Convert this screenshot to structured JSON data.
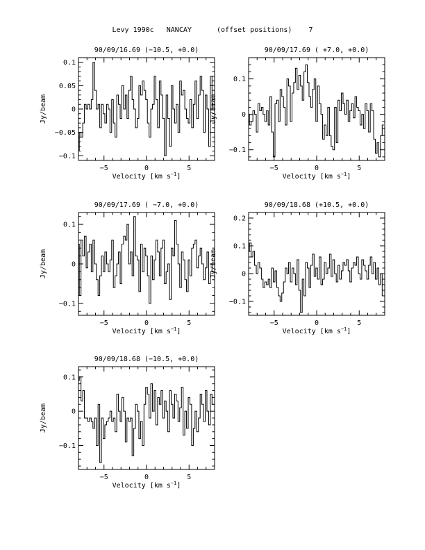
{
  "page": {
    "title": "Levy 1990c   NANCAY      (offset positions)    7"
  },
  "common": {
    "xlabel": "Velocity [km s",
    "xlabel_sup": "−1",
    "xlabel_end": "]",
    "ylabel": "Jy/beam"
  },
  "chart_data": [
    {
      "type": "line",
      "title": "90/09/16.69  (−10.5, +0.0)",
      "xlim": [
        -8.0,
        8.0
      ],
      "ylim": [
        -0.11,
        0.11
      ],
      "xticks": [
        -5,
        0,
        5
      ],
      "yticks": [
        -0.1,
        -0.05,
        0,
        0.05,
        0.1
      ],
      "ytick_labels": [
        "−0.1",
        "−0.05",
        "0",
        "0.05",
        "0.1"
      ],
      "x": [
        -8.0,
        -7.8,
        -7.6,
        -7.4,
        -7.2,
        -7.0,
        -6.8,
        -6.6,
        -6.4,
        -6.2,
        -6.0,
        -5.8,
        -5.6,
        -5.4,
        -5.2,
        -5.0,
        -4.8,
        -4.6,
        -4.4,
        -4.2,
        -4.0,
        -3.8,
        -3.6,
        -3.4,
        -3.2,
        -3.0,
        -2.8,
        -2.6,
        -2.4,
        -2.2,
        -2.0,
        -1.8,
        -1.6,
        -1.4,
        -1.2,
        -1.0,
        -0.8,
        -0.6,
        -0.4,
        -0.2,
        0.0,
        0.2,
        0.4,
        0.6,
        0.8,
        1.0,
        1.2,
        1.4,
        1.6,
        1.8,
        2.0,
        2.2,
        2.4,
        2.6,
        2.8,
        3.0,
        3.2,
        3.4,
        3.6,
        3.8,
        4.0,
        4.2,
        4.4,
        4.6,
        4.8,
        5.0,
        5.2,
        5.4,
        5.6,
        5.8,
        6.0,
        6.2,
        6.4,
        6.6,
        6.8,
        7.0,
        7.2,
        7.4,
        7.6,
        7.8
      ],
      "y": [
        -0.09,
        -0.05,
        -0.06,
        -0.03,
        0.01,
        0.0,
        0.01,
        0.0,
        0.02,
        0.1,
        0.04,
        0.0,
        0.01,
        -0.04,
        0.01,
        -0.01,
        -0.03,
        0.01,
        0.0,
        -0.05,
        0.02,
        -0.03,
        -0.06,
        0.03,
        0.01,
        -0.02,
        0.05,
        0.0,
        0.03,
        -0.02,
        0.04,
        0.07,
        0.02,
        0.0,
        -0.04,
        -0.02,
        0.05,
        0.03,
        0.06,
        0.04,
        0.02,
        -0.03,
        -0.06,
        0.0,
        0.01,
        0.07,
        0.02,
        -0.04,
        0.06,
        0.03,
        -0.02,
        -0.1,
        0.03,
        -0.02,
        -0.08,
        0.05,
        0.0,
        -0.03,
        0.01,
        -0.05,
        0.06,
        0.03,
        0.04,
        0.0,
        -0.02,
        -0.03,
        0.02,
        -0.04,
        0.01,
        0.06,
        -0.02,
        0.03,
        0.07,
        0.04,
        -0.05,
        0.03,
        0.0,
        -0.08,
        0.07,
        0.0
      ]
    },
    {
      "type": "line",
      "title": "90/09/17.69  ( +7.0, +0.0)",
      "xlim": [
        -8.0,
        8.0
      ],
      "ylim": [
        -0.13,
        0.16
      ],
      "xticks": [
        -5,
        0,
        5
      ],
      "yticks": [
        -0.1,
        0,
        0.1
      ],
      "ytick_labels": [
        "−0.1",
        "0",
        "0.1"
      ],
      "x": [
        -8.0,
        -7.8,
        -7.6,
        -7.4,
        -7.2,
        -7.0,
        -6.8,
        -6.6,
        -6.4,
        -6.2,
        -6.0,
        -5.8,
        -5.6,
        -5.4,
        -5.2,
        -5.0,
        -4.8,
        -4.6,
        -4.4,
        -4.2,
        -4.0,
        -3.8,
        -3.6,
        -3.4,
        -3.2,
        -3.0,
        -2.8,
        -2.6,
        -2.4,
        -2.2,
        -2.0,
        -1.8,
        -1.6,
        -1.4,
        -1.2,
        -1.0,
        -0.8,
        -0.6,
        -0.4,
        -0.2,
        0.0,
        0.2,
        0.4,
        0.6,
        0.8,
        1.0,
        1.2,
        1.4,
        1.6,
        1.8,
        2.0,
        2.2,
        2.4,
        2.6,
        2.8,
        3.0,
        3.2,
        3.4,
        3.6,
        3.8,
        4.0,
        4.2,
        4.4,
        4.6,
        4.8,
        5.0,
        5.2,
        5.4,
        5.6,
        5.8,
        6.0,
        6.2,
        6.4,
        6.6,
        6.8,
        7.0,
        7.2,
        7.4,
        7.6,
        7.8
      ],
      "y": [
        0.0,
        -0.03,
        -0.02,
        0.01,
        0.0,
        -0.05,
        0.03,
        0.01,
        0.02,
        0.0,
        -0.02,
        0.01,
        -0.03,
        0.05,
        -0.05,
        -0.12,
        0.03,
        0.04,
        -0.02,
        0.07,
        0.05,
        0.02,
        -0.03,
        0.1,
        0.08,
        -0.02,
        0.06,
        0.09,
        0.13,
        0.07,
        0.11,
        0.08,
        0.04,
        0.12,
        0.14,
        0.09,
        0.05,
        0.02,
        0.07,
        0.1,
        -0.02,
        0.08,
        0.03,
        0.0,
        -0.07,
        -0.03,
        -0.06,
        0.02,
        -0.06,
        -0.09,
        -0.1,
        0.02,
        -0.08,
        0.04,
        0.01,
        0.06,
        0.03,
        0.0,
        0.04,
        -0.02,
        0.01,
        0.03,
        -0.01,
        0.05,
        0.02,
        0.01,
        -0.03,
        0.0,
        -0.04,
        0.03,
        0.01,
        -0.05,
        0.03,
        0.01,
        -0.07,
        -0.11,
        -0.08,
        -0.12,
        -0.06,
        -0.03
      ]
    },
    {
      "type": "line",
      "title": "90/09/17.69  ( −7.0, +0.0)",
      "xlim": [
        -8.0,
        8.0
      ],
      "ylim": [
        -0.13,
        0.13
      ],
      "xticks": [
        -5,
        0,
        5
      ],
      "yticks": [
        -0.1,
        0,
        0.1
      ],
      "ytick_labels": [
        "−0.1",
        "0",
        "0.1"
      ],
      "x": [
        -8.0,
        -7.8,
        -7.6,
        -7.4,
        -7.2,
        -7.0,
        -6.8,
        -6.6,
        -6.4,
        -6.2,
        -6.0,
        -5.8,
        -5.6,
        -5.4,
        -5.2,
        -5.0,
        -4.8,
        -4.6,
        -4.4,
        -4.2,
        -4.0,
        -3.8,
        -3.6,
        -3.4,
        -3.2,
        -3.0,
        -2.8,
        -2.6,
        -2.4,
        -2.2,
        -2.0,
        -1.8,
        -1.6,
        -1.4,
        -1.2,
        -1.0,
        -0.8,
        -0.6,
        -0.4,
        -0.2,
        0.0,
        0.2,
        0.4,
        0.6,
        0.8,
        1.0,
        1.2,
        1.4,
        1.6,
        1.8,
        2.0,
        2.2,
        2.4,
        2.6,
        2.8,
        3.0,
        3.2,
        3.4,
        3.6,
        3.8,
        4.0,
        4.2,
        4.4,
        4.6,
        4.8,
        5.0,
        5.2,
        5.4,
        5.6,
        5.8,
        6.0,
        6.2,
        6.4,
        6.6,
        6.8,
        7.0,
        7.2,
        7.4,
        7.6,
        7.8
      ],
      "y": [
        0.05,
        -0.08,
        0.06,
        0.02,
        0.07,
        -0.01,
        0.03,
        0.05,
        -0.02,
        0.06,
        0.0,
        -0.04,
        -0.08,
        -0.03,
        0.02,
        -0.02,
        0.03,
        0.0,
        -0.02,
        0.01,
        0.06,
        -0.06,
        -0.03,
        0.0,
        0.03,
        -0.05,
        0.05,
        0.07,
        0.06,
        0.1,
        0.0,
        0.03,
        -0.03,
        0.12,
        0.02,
        0.01,
        -0.07,
        0.05,
        -0.02,
        0.04,
        0.02,
        -0.03,
        -0.1,
        0.02,
        -0.04,
        0.01,
        0.06,
        0.03,
        -0.03,
        0.04,
        0.06,
        -0.05,
        -0.02,
        0.0,
        -0.09,
        0.04,
        0.02,
        0.11,
        0.05,
        0.0,
        -0.06,
        0.03,
        0.01,
        -0.04,
        -0.07,
        0.01,
        -0.03,
        0.04,
        0.05,
        0.06,
        -0.01,
        0.02,
        0.04,
        0.0,
        -0.04,
        -0.01,
        0.03,
        -0.05,
        -0.02,
        0.0
      ]
    },
    {
      "type": "line",
      "title": "90/09/18.68  (+10.5, +0.0)",
      "xlim": [
        -8.0,
        8.0
      ],
      "ylim": [
        -0.15,
        0.22
      ],
      "xticks": [
        -5,
        0,
        5
      ],
      "yticks": [
        -0.1,
        0,
        0.1,
        0.2
      ],
      "ytick_labels": [
        "−0.1",
        "0",
        "0.1",
        "0.2"
      ],
      "x": [
        -8.0,
        -7.8,
        -7.6,
        -7.4,
        -7.2,
        -7.0,
        -6.8,
        -6.6,
        -6.4,
        -6.2,
        -6.0,
        -5.8,
        -5.6,
        -5.4,
        -5.2,
        -5.0,
        -4.8,
        -4.6,
        -4.4,
        -4.2,
        -4.0,
        -3.8,
        -3.6,
        -3.4,
        -3.2,
        -3.0,
        -2.8,
        -2.6,
        -2.4,
        -2.2,
        -2.0,
        -1.8,
        -1.6,
        -1.4,
        -1.2,
        -1.0,
        -0.8,
        -0.6,
        -0.4,
        -0.2,
        0.0,
        0.2,
        0.4,
        0.6,
        0.8,
        1.0,
        1.2,
        1.4,
        1.6,
        1.8,
        2.0,
        2.2,
        2.4,
        2.6,
        2.8,
        3.0,
        3.2,
        3.4,
        3.6,
        3.8,
        4.0,
        4.2,
        4.4,
        4.6,
        4.8,
        5.0,
        5.2,
        5.4,
        5.6,
        5.8,
        6.0,
        6.2,
        6.4,
        6.6,
        6.8,
        7.0,
        7.2,
        7.4,
        7.6,
        7.8
      ],
      "y": [
        0.08,
        0.11,
        0.06,
        0.08,
        0.03,
        0.0,
        0.04,
        0.02,
        -0.02,
        -0.05,
        -0.03,
        -0.04,
        -0.02,
        -0.05,
        0.02,
        -0.03,
        0.01,
        -0.05,
        -0.08,
        -0.1,
        -0.07,
        -0.03,
        0.02,
        0.0,
        0.04,
        -0.03,
        0.02,
        0.0,
        -0.04,
        0.05,
        -0.06,
        -0.14,
        -0.02,
        -0.08,
        0.04,
        0.02,
        -0.05,
        0.03,
        0.07,
        -0.01,
        0.02,
        -0.02,
        0.06,
        -0.04,
        -0.02,
        0.04,
        0.0,
        0.02,
        0.07,
        -0.01,
        0.05,
        0.0,
        -0.03,
        0.03,
        -0.02,
        0.01,
        0.04,
        0.03,
        0.05,
        0.01,
        -0.03,
        0.02,
        0.04,
        0.03,
        0.06,
        0.0,
        -0.02,
        0.05,
        0.03,
        0.01,
        -0.02,
        0.03,
        0.06,
        0.0,
        0.04,
        -0.02,
        0.02,
        -0.04,
        0.0,
        -0.08
      ]
    },
    {
      "type": "line",
      "title": "90/09/18.68  (−10.5, +0.0)",
      "xlim": [
        -8.0,
        8.0
      ],
      "ylim": [
        -0.17,
        0.13
      ],
      "xticks": [
        -5,
        0,
        5
      ],
      "yticks": [
        -0.1,
        0,
        0.1
      ],
      "ytick_labels": [
        "−0.1",
        "0",
        "0.1"
      ],
      "x": [
        -8.0,
        -7.8,
        -7.6,
        -7.4,
        -7.2,
        -7.0,
        -6.8,
        -6.6,
        -6.4,
        -6.2,
        -6.0,
        -5.8,
        -5.6,
        -5.4,
        -5.2,
        -5.0,
        -4.8,
        -4.6,
        -4.4,
        -4.2,
        -4.0,
        -3.8,
        -3.6,
        -3.4,
        -3.2,
        -3.0,
        -2.8,
        -2.6,
        -2.4,
        -2.2,
        -2.0,
        -1.8,
        -1.6,
        -1.4,
        -1.2,
        -1.0,
        -0.8,
        -0.6,
        -0.4,
        -0.2,
        0.0,
        0.2,
        0.4,
        0.6,
        0.8,
        1.0,
        1.2,
        1.4,
        1.6,
        1.8,
        2.0,
        2.2,
        2.4,
        2.6,
        2.8,
        3.0,
        3.2,
        3.4,
        3.6,
        3.8,
        4.0,
        4.2,
        4.4,
        4.6,
        4.8,
        5.0,
        5.2,
        5.4,
        5.6,
        5.8,
        6.0,
        6.2,
        6.4,
        6.6,
        6.8,
        7.0,
        7.2,
        7.4,
        7.6,
        7.8
      ],
      "y": [
        0.09,
        0.1,
        0.03,
        0.06,
        -0.02,
        -0.02,
        -0.03,
        -0.02,
        -0.03,
        -0.05,
        -0.02,
        -0.1,
        0.02,
        -0.15,
        -0.02,
        -0.08,
        -0.04,
        -0.03,
        -0.02,
        0.0,
        -0.03,
        -0.02,
        -0.06,
        0.05,
        0.0,
        -0.03,
        0.04,
        0.0,
        -0.09,
        -0.02,
        -0.03,
        -0.02,
        -0.13,
        -0.05,
        0.02,
        0.0,
        -0.08,
        -0.03,
        -0.1,
        0.02,
        0.07,
        0.05,
        -0.02,
        0.08,
        0.0,
        0.06,
        -0.04,
        0.04,
        0.02,
        0.06,
        -0.02,
        0.03,
        0.0,
        -0.06,
        0.06,
        0.02,
        -0.02,
        0.05,
        0.03,
        -0.03,
        0.01,
        0.07,
        -0.07,
        0.0,
        -0.05,
        0.04,
        0.02,
        -0.1,
        -0.05,
        0.0,
        -0.06,
        -0.02,
        0.05,
        0.02,
        -0.03,
        0.06,
        0.0,
        -0.04,
        0.05,
        0.02
      ]
    }
  ]
}
